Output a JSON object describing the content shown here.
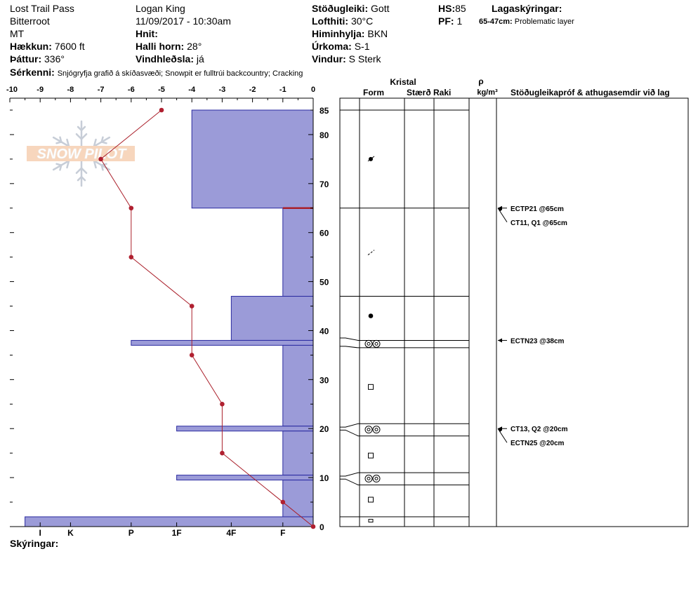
{
  "header": {
    "location": "Lost Trail Pass",
    "range": "Bitterroot",
    "state": "MT",
    "elevation_label": "Hækkun:",
    "elevation": "7600 ft",
    "aspect_label": "Þáttur:",
    "aspect": "336°",
    "observer": "Logan King",
    "datetime": "11/09/2017 - 10:30am",
    "coords_label": "Hnit:",
    "coords": "",
    "slope_label": "Halli horn:",
    "slope": "28°",
    "wind_loading_label": "Vindhleðsla:",
    "wind_loading": "já",
    "stability_label": "Stöðugleiki:",
    "stability": "Gott",
    "air_temp_label": "Lofthiti:",
    "air_temp": "30°C",
    "sky_label": "Himinhylja:",
    "sky": "BKN",
    "precip_label": "Úrkoma:",
    "precip": "S-1",
    "wind_label": "Vindur:",
    "wind": "S Sterk",
    "hs_label": "HS:",
    "hs": "85",
    "pf_label": "PF:",
    "pf": "1",
    "legend_title": "Lagaskýringar:",
    "legend_key": "65-47cm:",
    "legend_value": "Problematic layer",
    "features_label": "Sérkenni:",
    "features": "Snjógryfja grafið á skíðasvæði; Snowpit er fulltrúi backcountry; Cracking"
  },
  "footer": {
    "notes_label": "Skýringar:"
  },
  "watermark": "SNOW PILOT",
  "columns": {
    "crystal": "Kristal",
    "form": "Form",
    "size": "Stærð",
    "moisture": "Raki",
    "rho": "ρ",
    "density_unit": "kg/m³",
    "tests": "Stöðugleikapróf & athugasemdir við lag"
  },
  "chart_data": {
    "type": "snow-profile",
    "temp_axis": {
      "min": -10,
      "max": 0,
      "ticks": [
        "-10",
        "-9",
        "-8",
        "-7",
        "-6",
        "-5",
        "-4",
        "-3",
        "-2",
        "-1",
        "0"
      ]
    },
    "depth_axis": {
      "min": 0,
      "max": 85,
      "ticks": [
        "0",
        "10",
        "20",
        "30",
        "40",
        "50",
        "60",
        "70",
        "80",
        "85"
      ]
    },
    "hardness_ticks": [
      "I",
      "K",
      "P",
      "1F",
      "4F",
      "F"
    ],
    "hardness_layers": [
      {
        "top": 85,
        "bottom": 65,
        "hardness": 4
      },
      {
        "top": 65,
        "bottom": 47,
        "hardness": 1
      },
      {
        "top": 47,
        "bottom": 38,
        "hardness": 2.7
      },
      {
        "top": 38,
        "bottom": 37,
        "hardness": 6
      },
      {
        "top": 37,
        "bottom": 20.5,
        "hardness": 1
      },
      {
        "top": 20.5,
        "bottom": 19.5,
        "hardness": 4.5
      },
      {
        "top": 19.5,
        "bottom": 10.5,
        "hardness": 1
      },
      {
        "top": 10.5,
        "bottom": 9.5,
        "hardness": 4.5
      },
      {
        "top": 9.5,
        "bottom": 2,
        "hardness": 1
      },
      {
        "top": 2,
        "bottom": 0,
        "hardness": 9.5
      }
    ],
    "temperature_profile": [
      {
        "depth": 85,
        "temp": -5
      },
      {
        "depth": 75,
        "temp": -7
      },
      {
        "depth": 65,
        "temp": -6
      },
      {
        "depth": 55,
        "temp": -6
      },
      {
        "depth": 45,
        "temp": -4
      },
      {
        "depth": 35,
        "temp": -4
      },
      {
        "depth": 25,
        "temp": -3
      },
      {
        "depth": 15,
        "temp": -3
      },
      {
        "depth": 5,
        "temp": -1
      },
      {
        "depth": 0,
        "temp": 0
      }
    ],
    "problem_depth": 65,
    "layer_boundaries": [
      85,
      65,
      47,
      38,
      36.5,
      21,
      18.5,
      11,
      8.5,
      2
    ],
    "crystal_forms": [
      {
        "depth": 75,
        "symbol": "precip-particles"
      },
      {
        "depth": 56,
        "symbol": "decomposing"
      },
      {
        "depth": 43,
        "symbol": "rounded"
      },
      {
        "depth": 37.3,
        "symbol": "surface-hoar-crust"
      },
      {
        "depth": 28.5,
        "symbol": "faceted"
      },
      {
        "depth": 19.8,
        "symbol": "surface-hoar-crust"
      },
      {
        "depth": 14.5,
        "symbol": "faceted"
      },
      {
        "depth": 9.8,
        "symbol": "surface-hoar-crust"
      },
      {
        "depth": 5.5,
        "symbol": "faceted"
      },
      {
        "depth": 1.2,
        "symbol": "faceted-small"
      }
    ],
    "tests": [
      {
        "depth": 65,
        "label": "ECTP21 @65cm"
      },
      {
        "depth": 65,
        "label": "CT11, Q1 @65cm",
        "offset": 1
      },
      {
        "depth": 38,
        "label": "ECTN23 @38cm"
      },
      {
        "depth": 20,
        "label": "CT13, Q2 @20cm"
      },
      {
        "depth": 20,
        "label": "ECTN25 @20cm",
        "offset": 1
      }
    ]
  }
}
